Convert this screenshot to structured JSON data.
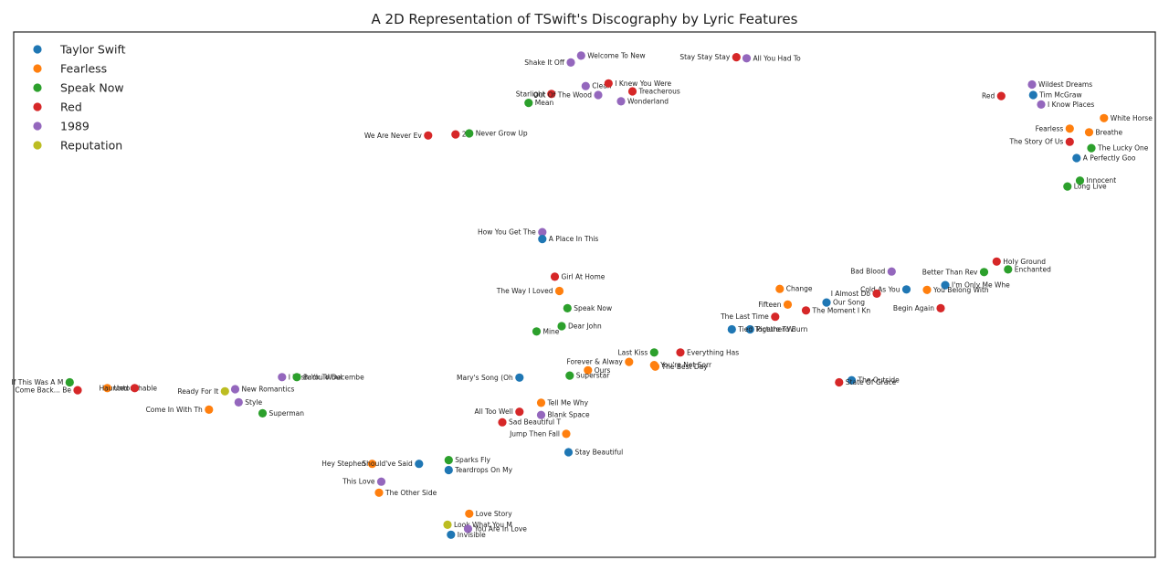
{
  "chart_data": {
    "type": "scatter",
    "title": "A 2D Representation of TSwift's Discography by Lyric Features",
    "xlabel": "",
    "ylabel": "",
    "grid": false,
    "legend_placement": "top-left",
    "series": [
      {
        "name": "Taylor Swift",
        "color": "#1f77b4"
      },
      {
        "name": "Fearless",
        "color": "#ff7f0e"
      },
      {
        "name": "Speak Now",
        "color": "#2ca02c"
      },
      {
        "name": "Red",
        "color": "#d62728"
      },
      {
        "name": "1989",
        "color": "#9467bd"
      },
      {
        "name": "Reputation",
        "color": "#bcbd22"
      }
    ],
    "points": [
      {
        "label": "Shake It Off",
        "series": 4,
        "x": 0.488,
        "y": 0.942,
        "anchor": "end"
      },
      {
        "label": "Welcome To New",
        "series": 4,
        "x": 0.497,
        "y": 0.955,
        "anchor": "start"
      },
      {
        "label": "Stay Stay Stay",
        "series": 3,
        "x": 0.633,
        "y": 0.952,
        "anchor": "end"
      },
      {
        "label": "All You Had To",
        "series": 4,
        "x": 0.642,
        "y": 0.95,
        "anchor": "start"
      },
      {
        "label": "Starlight",
        "series": 3,
        "x": 0.471,
        "y": 0.882,
        "anchor": "end"
      },
      {
        "label": "Clean",
        "series": 4,
        "x": 0.501,
        "y": 0.897,
        "anchor": "start"
      },
      {
        "label": "I Knew You Were",
        "series": 3,
        "x": 0.521,
        "y": 0.902,
        "anchor": "start"
      },
      {
        "label": "Treacherous",
        "series": 3,
        "x": 0.542,
        "y": 0.887,
        "anchor": "start"
      },
      {
        "label": "Out Of The Wood",
        "series": 4,
        "x": 0.512,
        "y": 0.88,
        "anchor": "end"
      },
      {
        "label": "Wonderland",
        "series": 4,
        "x": 0.532,
        "y": 0.868,
        "anchor": "start"
      },
      {
        "label": "Mean",
        "series": 2,
        "x": 0.451,
        "y": 0.865,
        "anchor": "start"
      },
      {
        "label": "22",
        "series": 3,
        "x": 0.387,
        "y": 0.805,
        "anchor": "start"
      },
      {
        "label": "Never Grow Up",
        "series": 2,
        "x": 0.399,
        "y": 0.807,
        "anchor": "start"
      },
      {
        "label": "We Are Never Ev",
        "series": 3,
        "x": 0.363,
        "y": 0.803,
        "anchor": "end"
      },
      {
        "label": "Red",
        "series": 3,
        "x": 0.865,
        "y": 0.878,
        "anchor": "end"
      },
      {
        "label": "Wildest Dreams",
        "series": 4,
        "x": 0.892,
        "y": 0.9,
        "anchor": "start"
      },
      {
        "label": "Tim McGraw",
        "series": 0,
        "x": 0.893,
        "y": 0.88,
        "anchor": "start"
      },
      {
        "label": "I Know Places",
        "series": 4,
        "x": 0.9,
        "y": 0.862,
        "anchor": "start"
      },
      {
        "label": "White Horse",
        "series": 1,
        "x": 0.955,
        "y": 0.836,
        "anchor": "start"
      },
      {
        "label": "Fearless",
        "series": 1,
        "x": 0.925,
        "y": 0.816,
        "anchor": "end"
      },
      {
        "label": "Breathe",
        "series": 1,
        "x": 0.942,
        "y": 0.809,
        "anchor": "start"
      },
      {
        "label": "The Lucky One",
        "series": 2,
        "x": 0.944,
        "y": 0.779,
        "anchor": "start"
      },
      {
        "label": "The Story Of Us",
        "series": 3,
        "x": 0.925,
        "y": 0.791,
        "anchor": "end"
      },
      {
        "label": "A Perfectly Goo",
        "series": 0,
        "x": 0.931,
        "y": 0.76,
        "anchor": "start"
      },
      {
        "label": "Innocent",
        "series": 2,
        "x": 0.934,
        "y": 0.717,
        "anchor": "start"
      },
      {
        "label": "Long Live",
        "series": 2,
        "x": 0.923,
        "y": 0.706,
        "anchor": "start"
      },
      {
        "label": "How You Get The",
        "series": 4,
        "x": 0.463,
        "y": 0.619,
        "anchor": "end"
      },
      {
        "label": "A Place In This",
        "series": 0,
        "x": 0.463,
        "y": 0.606,
        "anchor": "start"
      },
      {
        "label": "Girl At Home",
        "series": 3,
        "x": 0.474,
        "y": 0.534,
        "anchor": "start"
      },
      {
        "label": "The Way I Loved",
        "series": 1,
        "x": 0.478,
        "y": 0.507,
        "anchor": "end"
      },
      {
        "label": "Speak Now",
        "series": 2,
        "x": 0.485,
        "y": 0.474,
        "anchor": "start"
      },
      {
        "label": "Dear John",
        "series": 2,
        "x": 0.48,
        "y": 0.44,
        "anchor": "start"
      },
      {
        "label": "Mine",
        "series": 2,
        "x": 0.458,
        "y": 0.43,
        "anchor": "start"
      },
      {
        "label": "Bad Blood",
        "series": 4,
        "x": 0.769,
        "y": 0.544,
        "anchor": "end"
      },
      {
        "label": "Better Than Rev",
        "series": 2,
        "x": 0.85,
        "y": 0.543,
        "anchor": "end"
      },
      {
        "label": "Holy Ground",
        "series": 3,
        "x": 0.861,
        "y": 0.563,
        "anchor": "start"
      },
      {
        "label": "Enchanted",
        "series": 2,
        "x": 0.871,
        "y": 0.548,
        "anchor": "start"
      },
      {
        "label": "I'm Only Me Whe",
        "series": 0,
        "x": 0.816,
        "y": 0.518,
        "anchor": "start"
      },
      {
        "label": "Cold As You",
        "series": 0,
        "x": 0.782,
        "y": 0.51,
        "anchor": "end"
      },
      {
        "label": "You Belong With",
        "series": 1,
        "x": 0.8,
        "y": 0.509,
        "anchor": "start"
      },
      {
        "label": "Change",
        "series": 1,
        "x": 0.671,
        "y": 0.511,
        "anchor": "start"
      },
      {
        "label": "I Almost Do",
        "series": 3,
        "x": 0.756,
        "y": 0.502,
        "anchor": "end"
      },
      {
        "label": "Begin Again",
        "series": 3,
        "x": 0.812,
        "y": 0.474,
        "anchor": "end"
      },
      {
        "label": "Fifteen",
        "series": 1,
        "x": 0.678,
        "y": 0.481,
        "anchor": "end"
      },
      {
        "label": "Our Song",
        "series": 0,
        "x": 0.712,
        "y": 0.485,
        "anchor": "start"
      },
      {
        "label": "The Moment I Kn",
        "series": 3,
        "x": 0.694,
        "y": 0.47,
        "anchor": "start"
      },
      {
        "label": "The Last Time",
        "series": 3,
        "x": 0.667,
        "y": 0.458,
        "anchor": "end"
      },
      {
        "label": "Picture To Burn",
        "series": 0,
        "x": 0.645,
        "y": 0.434,
        "anchor": "start"
      },
      {
        "label": "Tied Together W",
        "series": 0,
        "x": 0.629,
        "y": 0.434,
        "anchor": "start"
      },
      {
        "label": "Last Kiss",
        "series": 2,
        "x": 0.561,
        "y": 0.39,
        "anchor": "end"
      },
      {
        "label": "Everything Has",
        "series": 3,
        "x": 0.584,
        "y": 0.39,
        "anchor": "start"
      },
      {
        "label": "The Best Day",
        "series": 1,
        "x": 0.562,
        "y": 0.363,
        "anchor": "start"
      },
      {
        "label": "Forever & Alway",
        "series": 1,
        "x": 0.539,
        "y": 0.372,
        "anchor": "end"
      },
      {
        "label": "You're Not Sorr",
        "series": 1,
        "x": 0.561,
        "y": 0.366,
        "anchor": "start"
      },
      {
        "label": "Mary's Song (Oh",
        "series": 0,
        "x": 0.443,
        "y": 0.342,
        "anchor": "end"
      },
      {
        "label": "Ours",
        "series": 1,
        "x": 0.503,
        "y": 0.356,
        "anchor": "start"
      },
      {
        "label": "Superstar",
        "series": 2,
        "x": 0.487,
        "y": 0.346,
        "anchor": "start"
      },
      {
        "label": "Tell Me Why",
        "series": 1,
        "x": 0.462,
        "y": 0.294,
        "anchor": "start"
      },
      {
        "label": "Blank Space",
        "series": 4,
        "x": 0.462,
        "y": 0.271,
        "anchor": "start"
      },
      {
        "label": "All Too Well",
        "series": 3,
        "x": 0.443,
        "y": 0.277,
        "anchor": "end"
      },
      {
        "label": "Sad Beautiful T",
        "series": 3,
        "x": 0.428,
        "y": 0.257,
        "anchor": "start"
      },
      {
        "label": "Jump Then Fall",
        "series": 1,
        "x": 0.484,
        "y": 0.235,
        "anchor": "end"
      },
      {
        "label": "Stay Beautiful",
        "series": 0,
        "x": 0.486,
        "y": 0.2,
        "anchor": "start"
      },
      {
        "label": "The Outside",
        "series": 0,
        "x": 0.734,
        "y": 0.337,
        "anchor": "start"
      },
      {
        "label": "State Of Grace",
        "series": 3,
        "x": 0.723,
        "y": 0.333,
        "anchor": "start"
      },
      {
        "label": "If This Was A M",
        "series": 2,
        "x": 0.049,
        "y": 0.333,
        "anchor": "end"
      },
      {
        "label": "Come Back... Be",
        "series": 3,
        "x": 0.056,
        "y": 0.318,
        "anchor": "end"
      },
      {
        "label": "Untouchable",
        "series": 1,
        "x": 0.082,
        "y": 0.322,
        "anchor": "start"
      },
      {
        "label": "Haunted",
        "series": 3,
        "x": 0.106,
        "y": 0.322,
        "anchor": "end"
      },
      {
        "label": "Ready For It",
        "series": 5,
        "x": 0.185,
        "y": 0.316,
        "anchor": "end"
      },
      {
        "label": "New Romantics",
        "series": 4,
        "x": 0.194,
        "y": 0.32,
        "anchor": "start"
      },
      {
        "label": "I Wish You Woul",
        "series": 4,
        "x": 0.235,
        "y": 0.343,
        "anchor": "start"
      },
      {
        "label": "Back To Decembe",
        "series": 2,
        "x": 0.248,
        "y": 0.343,
        "anchor": "start"
      },
      {
        "label": "Style",
        "series": 4,
        "x": 0.197,
        "y": 0.295,
        "anchor": "start"
      },
      {
        "label": "Come In With Th",
        "series": 1,
        "x": 0.171,
        "y": 0.281,
        "anchor": "end"
      },
      {
        "label": "Superman",
        "series": 2,
        "x": 0.218,
        "y": 0.274,
        "anchor": "start"
      },
      {
        "label": "Hey Stephen",
        "series": 1,
        "x": 0.314,
        "y": 0.178,
        "anchor": "end"
      },
      {
        "label": "Should've Said",
        "series": 0,
        "x": 0.355,
        "y": 0.178,
        "anchor": "end"
      },
      {
        "label": "Sparks Fly",
        "series": 2,
        "x": 0.381,
        "y": 0.185,
        "anchor": "start"
      },
      {
        "label": "Teardrops On My",
        "series": 0,
        "x": 0.381,
        "y": 0.166,
        "anchor": "start"
      },
      {
        "label": "This Love",
        "series": 4,
        "x": 0.322,
        "y": 0.144,
        "anchor": "end"
      },
      {
        "label": "The Other Side",
        "series": 1,
        "x": 0.32,
        "y": 0.123,
        "anchor": "start"
      },
      {
        "label": "Love Story",
        "series": 1,
        "x": 0.399,
        "y": 0.083,
        "anchor": "start"
      },
      {
        "label": "Look What You M",
        "series": 5,
        "x": 0.38,
        "y": 0.062,
        "anchor": "start"
      },
      {
        "label": "You Are In Love",
        "series": 4,
        "x": 0.398,
        "y": 0.054,
        "anchor": "start"
      },
      {
        "label": "Invisible",
        "series": 0,
        "x": 0.383,
        "y": 0.043,
        "anchor": "start"
      }
    ]
  }
}
